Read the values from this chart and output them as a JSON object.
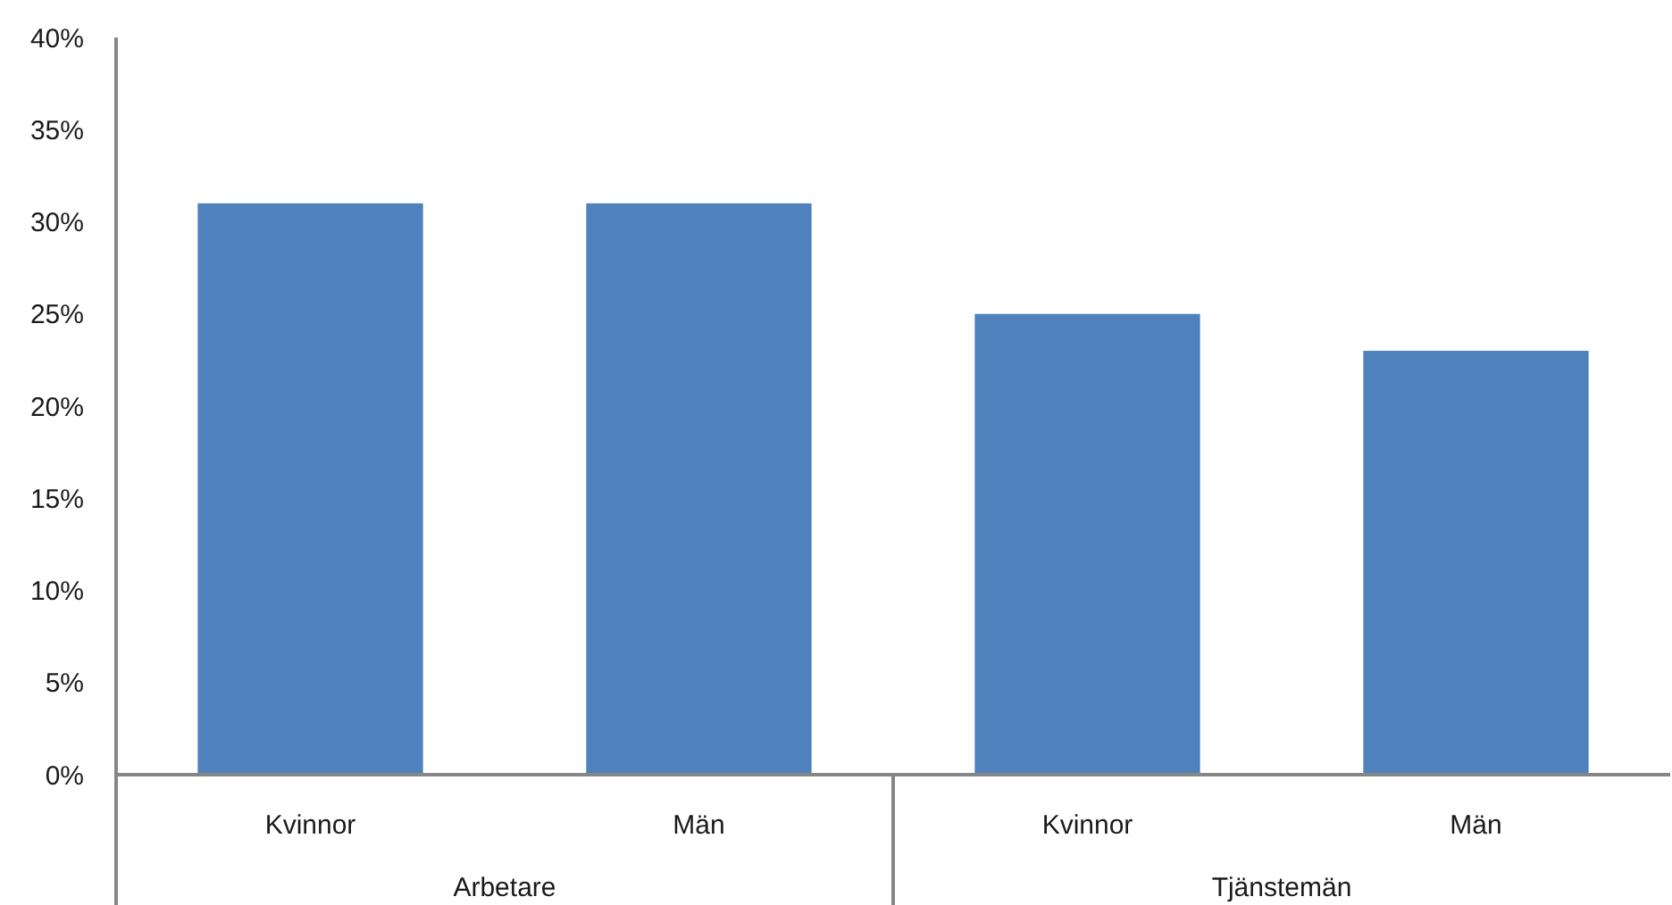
{
  "chart_data": {
    "type": "bar",
    "categories": [
      "Kvinnor",
      "Män",
      "Kvinnor",
      "Män"
    ],
    "values": [
      31,
      31,
      25,
      23
    ],
    "color": "#4f81bd",
    "ylim": [
      0,
      40
    ],
    "yticks": [
      {
        "value": 0,
        "label": "0%"
      },
      {
        "value": 5,
        "label": "5%"
      },
      {
        "value": 10,
        "label": "10%"
      },
      {
        "value": 15,
        "label": "15%"
      },
      {
        "value": 20,
        "label": "20%"
      },
      {
        "value": 25,
        "label": "25%"
      },
      {
        "value": 30,
        "label": "30%"
      },
      {
        "value": 35,
        "label": "35%"
      },
      {
        "value": 40,
        "label": "40%"
      }
    ],
    "annotations": [
      "Arbetare",
      "Tjänstemän"
    ],
    "grid": false
  }
}
